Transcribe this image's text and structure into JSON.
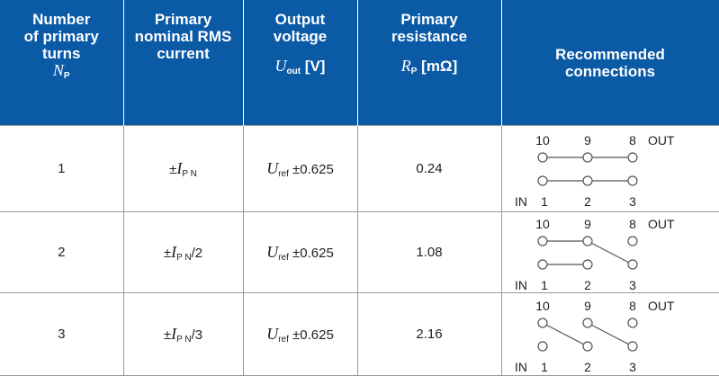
{
  "table": {
    "header": [
      {
        "lines": [
          "Number",
          "of primary",
          "turns"
        ],
        "symbol": "N",
        "sub": "P"
      },
      {
        "lines": [
          "Primary",
          "nominal RMS",
          "current"
        ]
      },
      {
        "lines": [
          "Output",
          "voltage"
        ],
        "symbol": "U",
        "sub": "out",
        "unit": "[V]"
      },
      {
        "lines": [
          "Primary",
          "resistance"
        ],
        "symbol": "R",
        "sub": "P",
        "unit": "[mΩ]"
      },
      {
        "lines": [
          "Recommended",
          "connections"
        ]
      }
    ],
    "rows": [
      {
        "turns": 1,
        "current": {
          "prefix": "±",
          "symbol": "I",
          "sub": "P N"
        },
        "voltage": {
          "symbol": "U",
          "sub": "ref",
          "text": "±0.625"
        },
        "resistance": 0.24,
        "pins_top": [
          "10",
          "9",
          "8"
        ],
        "out": "OUT",
        "in": "IN",
        "pins_bottom": [
          "1",
          "2",
          "3"
        ]
      },
      {
        "turns": 2,
        "current": {
          "prefix": "±",
          "symbol": "I",
          "sub": "P N",
          "suffix": "/2"
        },
        "voltage": {
          "symbol": "U",
          "sub": "ref",
          "text": "±0.625"
        },
        "resistance": 1.08,
        "pins_top": [
          "10",
          "9",
          "8"
        ],
        "out": "OUT",
        "in": "IN",
        "pins_bottom": [
          "1",
          "2",
          "3"
        ]
      },
      {
        "turns": 3,
        "current": {
          "prefix": "±",
          "symbol": "I",
          "sub": "P N",
          "suffix": "/3"
        },
        "voltage": {
          "symbol": "U",
          "sub": "ref",
          "text": "±0.625"
        },
        "resistance": 2.16,
        "pins_top": [
          "10",
          "9",
          "8"
        ],
        "out": "OUT",
        "in": "IN",
        "pins_bottom": [
          "1",
          "2",
          "3"
        ]
      }
    ]
  }
}
